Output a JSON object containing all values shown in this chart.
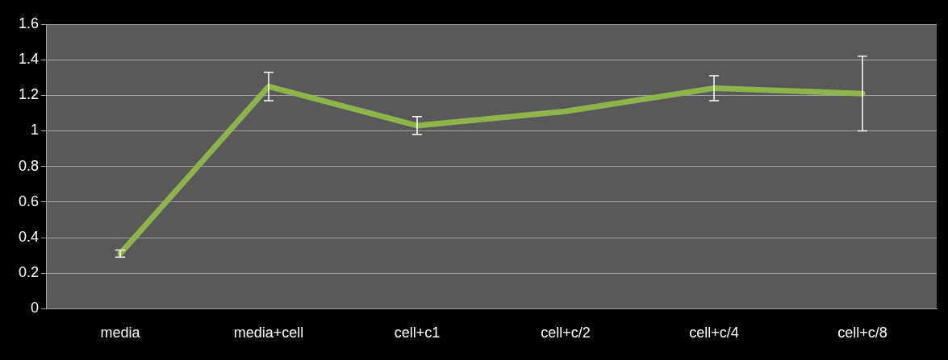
{
  "chart_data": {
    "type": "line",
    "categories": [
      "media",
      "media+cell",
      "cell+c1",
      "cell+c/2",
      "cell+c/4",
      "cell+c/8"
    ],
    "series": [
      {
        "color": "#8db34a",
        "values": [
          0.31,
          1.25,
          1.03,
          1.11,
          1.24,
          1.21
        ],
        "errors": [
          0.02,
          0.08,
          0.05,
          null,
          0.07,
          0.21
        ]
      }
    ],
    "ylim": [
      0,
      1.6
    ],
    "yticks": [
      0,
      0.2,
      0.4,
      0.6,
      0.8,
      1,
      1.2,
      1.4,
      1.6
    ],
    "grid": "y",
    "legend": false,
    "marker": "none",
    "line_style": "solid"
  }
}
